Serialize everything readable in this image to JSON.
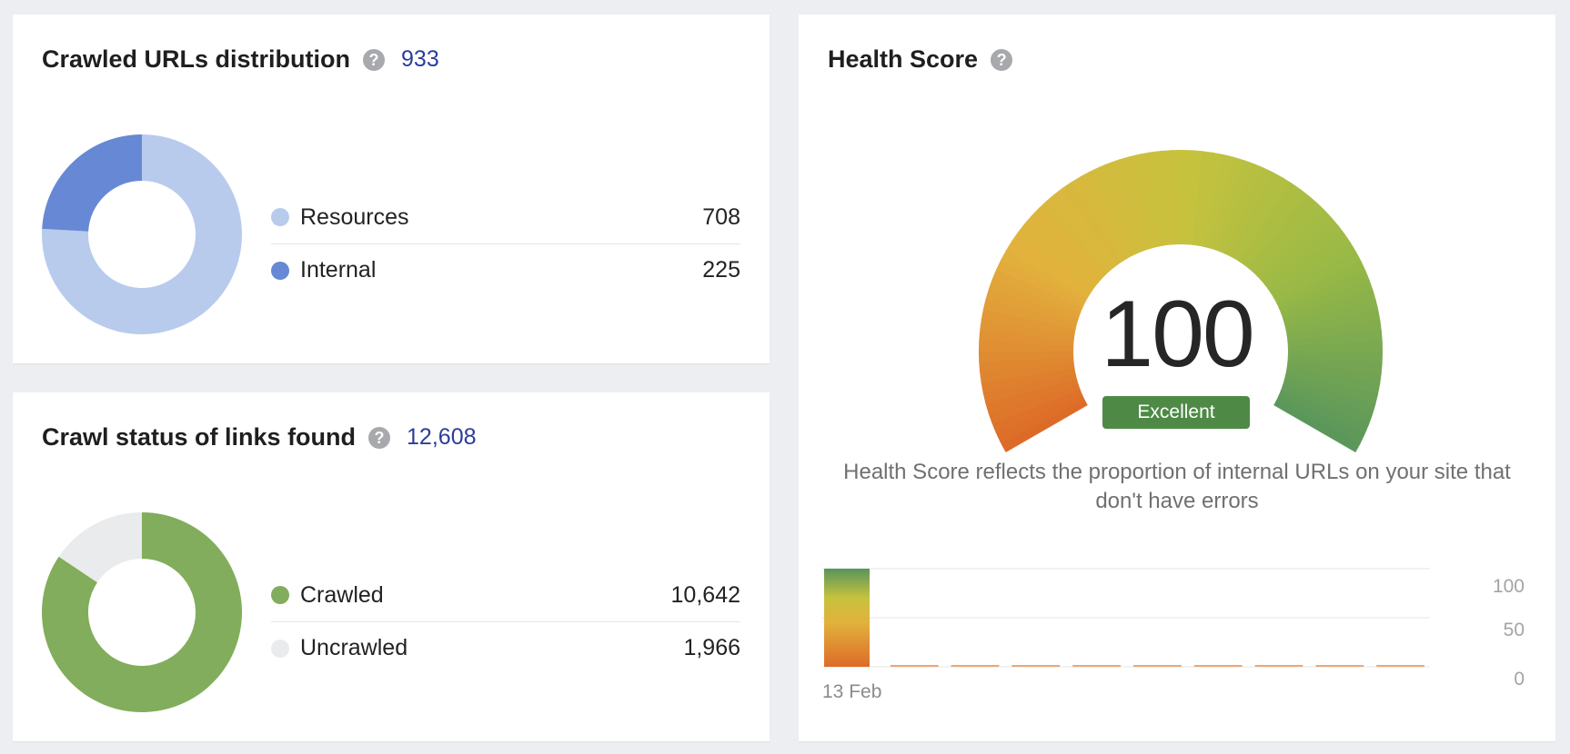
{
  "crawled_distribution": {
    "title": "Crawled URLs distribution",
    "total": "933",
    "items": [
      {
        "label": "Resources",
        "value": "708",
        "number": 708,
        "color": "#b8cbed"
      },
      {
        "label": "Internal",
        "value": "225",
        "number": 225,
        "color": "#6788d4"
      }
    ]
  },
  "crawl_status": {
    "title": "Crawl status of links found",
    "total": "12,608",
    "items": [
      {
        "label": "Crawled",
        "value": "10,642",
        "number": 10642,
        "color": "#82ad5c"
      },
      {
        "label": "Uncrawled",
        "value": "1,966",
        "number": 1966,
        "color": "#eaebec"
      }
    ]
  },
  "health_score": {
    "title": "Health Score",
    "score": "100",
    "score_number": 100,
    "rating": "Excellent",
    "description": "Health Score reflects the proportion of internal URLs on your site that don't have errors",
    "gauge_colors": [
      "#dd6b28",
      "#e2b23d",
      "#c7c23e",
      "#98b946",
      "#58955c"
    ],
    "rating_color": "#4e8a46"
  },
  "chart_data": {
    "type": "bar",
    "title": "",
    "xlabel": "",
    "ylabel": "",
    "categories": [
      "13 Feb",
      "",
      "",
      "",
      "",
      "",
      "",
      "",
      "",
      ""
    ],
    "x_tick_labels": [
      "13 Feb"
    ],
    "values": [
      100,
      0,
      0,
      0,
      0,
      0,
      0,
      0,
      0,
      0
    ],
    "yticks": [
      "0",
      "50",
      "100"
    ],
    "ylim": [
      0,
      100
    ],
    "grid": true
  },
  "help_icon": "question-mark-icon",
  "help_symbol": "?"
}
